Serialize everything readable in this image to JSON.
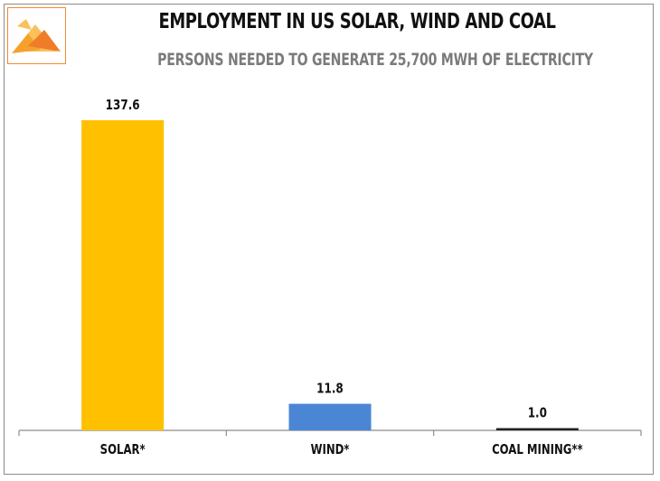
{
  "header": {
    "title": "EMPLOYMENT IN US SOLAR, WIND AND COAL",
    "subtitle": "PERSONS NEEDED TO GENERATE 25,700 MWH OF ELECTRICITY"
  },
  "logo": {
    "icon": "pyramid-logo-icon",
    "colors": [
      "#f5a12c",
      "#ef7c28",
      "#fbc05a"
    ]
  },
  "chart_data": {
    "type": "bar",
    "title": "EMPLOYMENT IN US SOLAR, WIND AND COAL",
    "subtitle": "PERSONS NEEDED TO GENERATE 25,700 MWH OF ELECTRICITY",
    "categories": [
      "SOLAR*",
      "WIND*",
      "COAL MINING**"
    ],
    "values": [
      137.6,
      11.8,
      1.0
    ],
    "value_labels": [
      "137.6",
      "11.8",
      "1.0"
    ],
    "colors": [
      "#ffc000",
      "#4a86d4",
      "#222222"
    ],
    "xlabel": "",
    "ylabel": "",
    "ylim": [
      0,
      137.6
    ],
    "grid": false,
    "legend": "none"
  }
}
